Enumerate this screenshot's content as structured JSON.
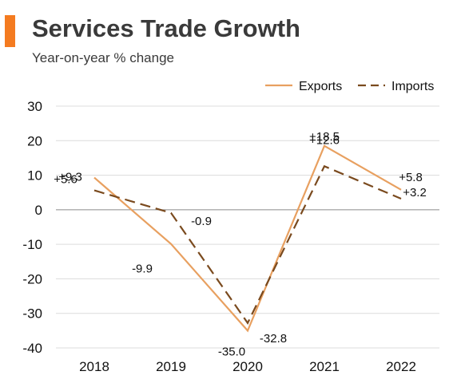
{
  "header": {
    "title": "Services Trade Growth",
    "subtitle": "Year-on-year % change",
    "accent_color": "#F47B20"
  },
  "chart_data": {
    "type": "line",
    "categories": [
      "2018",
      "2019",
      "2020",
      "2021",
      "2022"
    ],
    "series": [
      {
        "name": "Exports",
        "values": [
          9.3,
          -9.9,
          -35.0,
          18.5,
          5.8
        ],
        "labels": [
          "+9.3",
          "-9.9",
          "-35.0",
          "+18.5",
          "+5.8"
        ],
        "color": "#E8A060",
        "style": "solid"
      },
      {
        "name": "Imports",
        "values": [
          5.6,
          -0.9,
          -32.8,
          12.6,
          3.2
        ],
        "labels": [
          "+5.6",
          "-0.9",
          "-32.8",
          "+12.6",
          "+3.2"
        ],
        "color": "#7A4A1E",
        "style": "dashed"
      }
    ],
    "yticks": [
      30,
      20,
      10,
      0,
      -10,
      -20,
      -30,
      -40
    ],
    "ylim": [
      -40,
      30
    ],
    "grid": true,
    "legend_position": "top-right"
  }
}
